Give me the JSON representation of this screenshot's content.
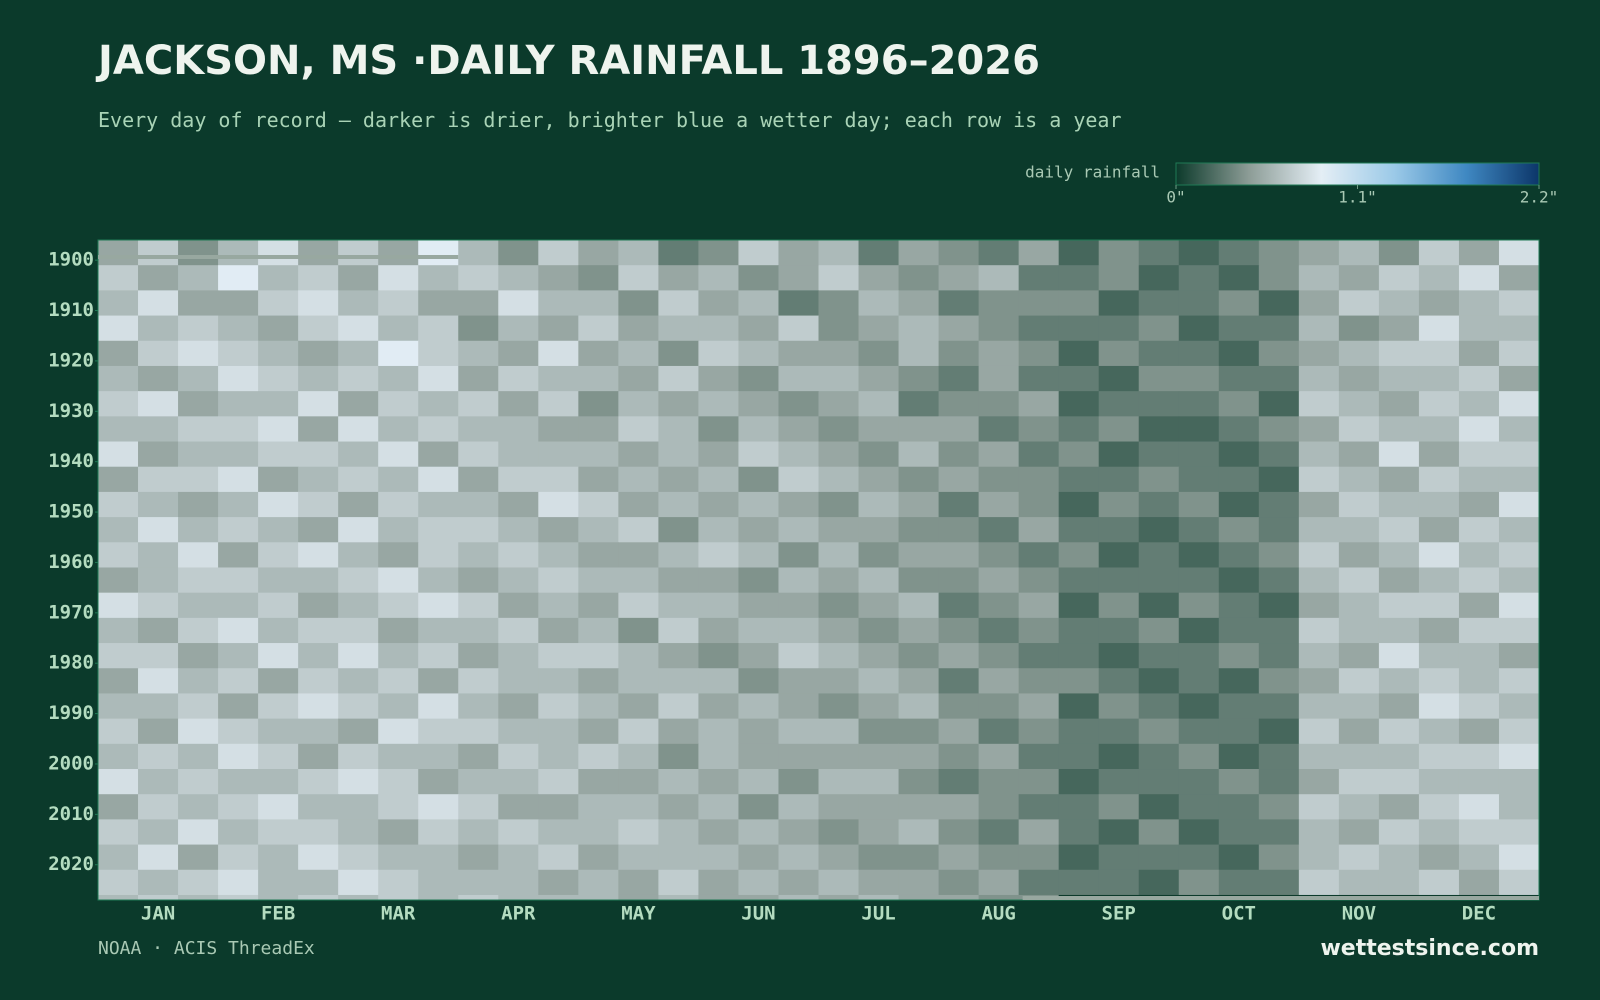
{
  "chart_data": {
    "type": "heatmap",
    "title": "JACKSON, MS ·DAILY RAINFALL 1896–2026",
    "subtitle": "Every day of record — darker is drier, brighter blue a wetter day; each row is a year",
    "legend_title": "daily rainfall",
    "source": "NOAA · ACIS ThreadEx",
    "brand": "wettestsince.com",
    "categories": [
      "JAN",
      "FEB",
      "MAR",
      "APR",
      "MAY",
      "JUN",
      "JUL",
      "AUG",
      "SEP",
      "OCT",
      "NOV",
      "DEC"
    ],
    "ylim": [
      1896,
      2027
    ],
    "yticks": [
      1900,
      1910,
      1920,
      1930,
      1940,
      1950,
      1960,
      1970,
      1980,
      1990,
      2000,
      2010,
      2020
    ],
    "years": [
      1896,
      1901,
      1906,
      1911,
      1916,
      1921,
      1926,
      1931,
      1936,
      1941,
      1946,
      1951,
      1956,
      1961,
      1966,
      1971,
      1976,
      1981,
      1986,
      1991,
      1996,
      2001,
      2006,
      2011,
      2016,
      2021,
      2026
    ],
    "zlim": [
      0,
      2.2
    ],
    "zticks": [
      {
        "value": 0,
        "label": "0\""
      },
      {
        "value": 1.1,
        "label": "1.1\""
      },
      {
        "value": 2.2,
        "label": "2.2\""
      }
    ],
    "colors": [
      "#0c3a2b",
      "#8c9c96",
      "#e4eef5",
      "#9ccae8",
      "#3f88c2",
      "#0c3669"
    ],
    "values": [
      [
        0.5,
        0.7,
        0.4,
        0.6,
        0.8,
        0.5,
        0.7,
        0.5,
        0.9,
        0.6,
        0.4,
        0.7,
        0.5,
        0.6,
        0.3,
        0.4,
        0.7,
        0.5,
        0.6,
        0.3,
        0.5,
        0.4,
        0.3,
        0.5,
        0.2,
        0.4,
        0.3,
        0.2,
        0.3,
        0.4,
        0.5,
        0.6,
        0.4,
        0.7,
        0.5,
        0.8
      ],
      [
        0.7,
        0.5,
        0.6,
        0.9,
        0.6,
        0.7,
        0.5,
        0.8,
        0.6,
        0.7,
        0.6,
        0.5,
        0.4,
        0.7,
        0.5,
        0.6,
        0.4,
        0.5,
        0.7,
        0.5,
        0.4,
        0.5,
        0.6,
        0.3,
        0.3,
        0.4,
        0.2,
        0.3,
        0.2,
        0.4,
        0.6,
        0.5,
        0.7,
        0.6,
        0.8,
        0.5
      ],
      [
        0.6,
        0.8,
        0.5,
        0.5,
        0.7,
        0.8,
        0.6,
        0.7,
        0.5,
        0.5,
        0.8,
        0.6,
        0.6,
        0.4,
        0.7,
        0.5,
        0.6,
        0.3,
        0.4,
        0.6,
        0.5,
        0.3,
        0.4,
        0.4,
        0.4,
        0.2,
        0.3,
        0.3,
        0.4,
        0.2,
        0.5,
        0.7,
        0.6,
        0.5,
        0.6,
        0.7
      ],
      [
        0.8,
        0.6,
        0.7,
        0.6,
        0.5,
        0.7,
        0.8,
        0.6,
        0.7,
        0.4,
        0.6,
        0.5,
        0.7,
        0.5,
        0.6,
        0.6,
        0.5,
        0.7,
        0.4,
        0.5,
        0.6,
        0.5,
        0.4,
        0.3,
        0.3,
        0.3,
        0.4,
        0.2,
        0.3,
        0.3,
        0.6,
        0.4,
        0.5,
        0.8,
        0.6,
        0.6
      ],
      [
        0.5,
        0.7,
        0.8,
        0.7,
        0.6,
        0.5,
        0.6,
        0.9,
        0.7,
        0.6,
        0.5,
        0.8,
        0.5,
        0.6,
        0.4,
        0.7,
        0.6,
        0.5,
        0.5,
        0.4,
        0.6,
        0.4,
        0.5,
        0.4,
        0.2,
        0.4,
        0.3,
        0.3,
        0.2,
        0.4,
        0.5,
        0.6,
        0.7,
        0.7,
        0.5,
        0.7
      ],
      [
        0.6,
        0.5,
        0.6,
        0.8,
        0.7,
        0.6,
        0.7,
        0.6,
        0.8,
        0.5,
        0.7,
        0.6,
        0.6,
        0.5,
        0.7,
        0.5,
        0.4,
        0.6,
        0.6,
        0.5,
        0.4,
        0.3,
        0.5,
        0.3,
        0.3,
        0.2,
        0.4,
        0.4,
        0.3,
        0.3,
        0.6,
        0.5,
        0.6,
        0.6,
        0.7,
        0.5
      ],
      [
        0.7,
        0.8,
        0.5,
        0.6,
        0.6,
        0.8,
        0.5,
        0.7,
        0.6,
        0.7,
        0.5,
        0.7,
        0.4,
        0.6,
        0.5,
        0.6,
        0.5,
        0.4,
        0.5,
        0.6,
        0.3,
        0.4,
        0.4,
        0.5,
        0.2,
        0.3,
        0.3,
        0.3,
        0.4,
        0.2,
        0.7,
        0.6,
        0.5,
        0.7,
        0.6,
        0.8
      ],
      [
        0.6,
        0.6,
        0.7,
        0.7,
        0.8,
        0.5,
        0.8,
        0.6,
        0.7,
        0.6,
        0.6,
        0.5,
        0.5,
        0.7,
        0.6,
        0.4,
        0.6,
        0.5,
        0.4,
        0.5,
        0.5,
        0.5,
        0.3,
        0.4,
        0.3,
        0.4,
        0.2,
        0.2,
        0.3,
        0.4,
        0.5,
        0.7,
        0.6,
        0.6,
        0.8,
        0.6
      ],
      [
        0.8,
        0.5,
        0.6,
        0.6,
        0.7,
        0.7,
        0.6,
        0.8,
        0.5,
        0.7,
        0.6,
        0.6,
        0.6,
        0.5,
        0.6,
        0.5,
        0.7,
        0.6,
        0.5,
        0.4,
        0.6,
        0.4,
        0.5,
        0.3,
        0.4,
        0.2,
        0.3,
        0.3,
        0.2,
        0.3,
        0.6,
        0.5,
        0.8,
        0.5,
        0.7,
        0.7
      ],
      [
        0.5,
        0.7,
        0.7,
        0.8,
        0.5,
        0.6,
        0.7,
        0.6,
        0.8,
        0.5,
        0.7,
        0.7,
        0.5,
        0.6,
        0.5,
        0.6,
        0.4,
        0.7,
        0.6,
        0.5,
        0.4,
        0.5,
        0.4,
        0.4,
        0.3,
        0.3,
        0.4,
        0.3,
        0.3,
        0.2,
        0.7,
        0.6,
        0.5,
        0.7,
        0.6,
        0.6
      ],
      [
        0.7,
        0.6,
        0.5,
        0.6,
        0.8,
        0.7,
        0.5,
        0.7,
        0.6,
        0.6,
        0.5,
        0.8,
        0.7,
        0.5,
        0.6,
        0.5,
        0.6,
        0.5,
        0.4,
        0.6,
        0.5,
        0.3,
        0.5,
        0.4,
        0.2,
        0.4,
        0.3,
        0.4,
        0.2,
        0.3,
        0.5,
        0.7,
        0.6,
        0.6,
        0.5,
        0.8
      ],
      [
        0.6,
        0.8,
        0.6,
        0.7,
        0.6,
        0.5,
        0.8,
        0.6,
        0.7,
        0.7,
        0.6,
        0.5,
        0.6,
        0.7,
        0.4,
        0.6,
        0.5,
        0.6,
        0.5,
        0.5,
        0.4,
        0.4,
        0.3,
        0.5,
        0.3,
        0.3,
        0.2,
        0.3,
        0.4,
        0.3,
        0.6,
        0.6,
        0.7,
        0.5,
        0.7,
        0.6
      ],
      [
        0.7,
        0.6,
        0.8,
        0.5,
        0.7,
        0.8,
        0.6,
        0.5,
        0.7,
        0.6,
        0.7,
        0.6,
        0.5,
        0.5,
        0.6,
        0.7,
        0.6,
        0.4,
        0.6,
        0.4,
        0.5,
        0.5,
        0.4,
        0.3,
        0.4,
        0.2,
        0.3,
        0.2,
        0.3,
        0.4,
        0.7,
        0.5,
        0.6,
        0.8,
        0.6,
        0.7
      ],
      [
        0.5,
        0.6,
        0.7,
        0.7,
        0.6,
        0.6,
        0.7,
        0.8,
        0.6,
        0.5,
        0.6,
        0.7,
        0.6,
        0.6,
        0.5,
        0.5,
        0.4,
        0.6,
        0.5,
        0.6,
        0.4,
        0.4,
        0.5,
        0.4,
        0.3,
        0.3,
        0.3,
        0.3,
        0.2,
        0.3,
        0.6,
        0.7,
        0.5,
        0.6,
        0.7,
        0.6
      ],
      [
        0.8,
        0.7,
        0.6,
        0.6,
        0.7,
        0.5,
        0.6,
        0.7,
        0.8,
        0.7,
        0.5,
        0.6,
        0.5,
        0.7,
        0.6,
        0.6,
        0.5,
        0.5,
        0.4,
        0.5,
        0.6,
        0.3,
        0.4,
        0.5,
        0.2,
        0.4,
        0.2,
        0.4,
        0.3,
        0.2,
        0.5,
        0.6,
        0.7,
        0.7,
        0.5,
        0.8
      ],
      [
        0.6,
        0.5,
        0.7,
        0.8,
        0.6,
        0.7,
        0.7,
        0.5,
        0.6,
        0.6,
        0.7,
        0.5,
        0.6,
        0.4,
        0.7,
        0.5,
        0.6,
        0.6,
        0.5,
        0.4,
        0.5,
        0.4,
        0.3,
        0.4,
        0.3,
        0.3,
        0.4,
        0.2,
        0.3,
        0.3,
        0.7,
        0.6,
        0.6,
        0.5,
        0.7,
        0.7
      ],
      [
        0.7,
        0.7,
        0.5,
        0.6,
        0.8,
        0.6,
        0.8,
        0.6,
        0.7,
        0.5,
        0.6,
        0.7,
        0.7,
        0.6,
        0.5,
        0.4,
        0.5,
        0.7,
        0.6,
        0.5,
        0.4,
        0.5,
        0.4,
        0.3,
        0.3,
        0.2,
        0.3,
        0.3,
        0.4,
        0.3,
        0.6,
        0.5,
        0.8,
        0.6,
        0.6,
        0.5
      ],
      [
        0.5,
        0.8,
        0.6,
        0.7,
        0.5,
        0.7,
        0.6,
        0.7,
        0.5,
        0.7,
        0.6,
        0.6,
        0.5,
        0.6,
        0.6,
        0.6,
        0.4,
        0.5,
        0.5,
        0.6,
        0.5,
        0.3,
        0.5,
        0.4,
        0.4,
        0.3,
        0.2,
        0.3,
        0.2,
        0.4,
        0.5,
        0.7,
        0.6,
        0.7,
        0.6,
        0.7
      ],
      [
        0.6,
        0.6,
        0.7,
        0.5,
        0.7,
        0.8,
        0.7,
        0.6,
        0.8,
        0.6,
        0.5,
        0.7,
        0.6,
        0.5,
        0.7,
        0.5,
        0.6,
        0.5,
        0.4,
        0.5,
        0.6,
        0.4,
        0.4,
        0.5,
        0.2,
        0.4,
        0.3,
        0.2,
        0.3,
        0.3,
        0.6,
        0.6,
        0.5,
        0.8,
        0.7,
        0.6
      ],
      [
        0.7,
        0.5,
        0.8,
        0.7,
        0.6,
        0.6,
        0.5,
        0.8,
        0.7,
        0.7,
        0.6,
        0.6,
        0.5,
        0.7,
        0.5,
        0.6,
        0.5,
        0.6,
        0.6,
        0.4,
        0.4,
        0.5,
        0.3,
        0.4,
        0.3,
        0.3,
        0.4,
        0.3,
        0.3,
        0.2,
        0.7,
        0.5,
        0.7,
        0.6,
        0.5,
        0.7
      ],
      [
        0.6,
        0.7,
        0.6,
        0.8,
        0.7,
        0.5,
        0.7,
        0.6,
        0.6,
        0.5,
        0.7,
        0.6,
        0.7,
        0.6,
        0.4,
        0.6,
        0.5,
        0.5,
        0.5,
        0.5,
        0.5,
        0.4,
        0.5,
        0.3,
        0.3,
        0.2,
        0.3,
        0.4,
        0.2,
        0.3,
        0.6,
        0.6,
        0.6,
        0.7,
        0.7,
        0.8
      ],
      [
        0.8,
        0.6,
        0.7,
        0.6,
        0.6,
        0.7,
        0.8,
        0.7,
        0.5,
        0.6,
        0.6,
        0.7,
        0.5,
        0.5,
        0.6,
        0.5,
        0.6,
        0.4,
        0.6,
        0.6,
        0.4,
        0.3,
        0.4,
        0.4,
        0.2,
        0.3,
        0.3,
        0.3,
        0.4,
        0.3,
        0.5,
        0.7,
        0.7,
        0.6,
        0.6,
        0.6
      ],
      [
        0.5,
        0.7,
        0.6,
        0.7,
        0.8,
        0.6,
        0.6,
        0.7,
        0.8,
        0.7,
        0.5,
        0.5,
        0.6,
        0.6,
        0.5,
        0.6,
        0.4,
        0.6,
        0.5,
        0.5,
        0.5,
        0.5,
        0.4,
        0.3,
        0.3,
        0.4,
        0.2,
        0.3,
        0.3,
        0.4,
        0.7,
        0.6,
        0.5,
        0.7,
        0.8,
        0.6
      ],
      [
        0.7,
        0.6,
        0.8,
        0.6,
        0.7,
        0.7,
        0.6,
        0.5,
        0.7,
        0.6,
        0.7,
        0.6,
        0.6,
        0.7,
        0.6,
        0.5,
        0.6,
        0.5,
        0.4,
        0.5,
        0.6,
        0.4,
        0.3,
        0.5,
        0.3,
        0.2,
        0.4,
        0.2,
        0.3,
        0.3,
        0.6,
        0.5,
        0.7,
        0.6,
        0.7,
        0.7
      ],
      [
        0.6,
        0.8,
        0.5,
        0.7,
        0.6,
        0.8,
        0.7,
        0.6,
        0.6,
        0.5,
        0.6,
        0.7,
        0.5,
        0.6,
        0.6,
        0.6,
        0.5,
        0.6,
        0.5,
        0.4,
        0.4,
        0.5,
        0.4,
        0.4,
        0.2,
        0.3,
        0.3,
        0.3,
        0.2,
        0.4,
        0.6,
        0.7,
        0.6,
        0.5,
        0.6,
        0.8
      ],
      [
        0.7,
        0.6,
        0.7,
        0.8,
        0.6,
        0.6,
        0.8,
        0.7,
        0.6,
        0.6,
        0.6,
        0.5,
        0.6,
        0.5,
        0.7,
        0.5,
        0.6,
        0.5,
        0.6,
        0.5,
        0.5,
        0.4,
        0.5,
        0.3,
        0.3,
        0.3,
        0.2,
        0.4,
        0.3,
        0.3,
        0.7,
        0.6,
        0.6,
        0.7,
        0.5,
        0.7
      ],
      [
        0.6,
        0.7,
        0.6,
        0.7,
        0.6,
        0.7,
        0.6,
        0.7,
        0.6,
        0.7,
        0.6,
        0.6,
        0.6,
        0.5,
        0.6,
        0.5,
        0.5,
        0.6,
        0.5,
        0.6,
        0.5,
        0.5,
        0.4,
        0.4,
        null,
        null,
        null,
        null,
        null,
        null,
        null,
        null,
        null,
        null,
        null,
        null
      ]
    ]
  }
}
